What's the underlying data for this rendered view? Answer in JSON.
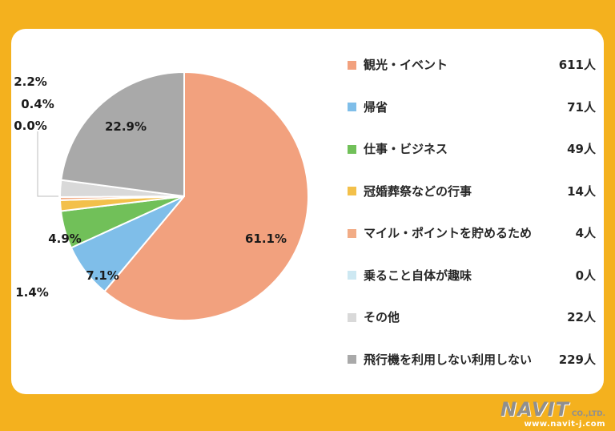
{
  "frame": {
    "background": "#F4B11E",
    "panel_background": "#FFFFFF"
  },
  "chart_data": {
    "type": "pie",
    "title": "",
    "unit": "人",
    "direction": "clockwise",
    "start_angle_deg": 0,
    "legend_position": "right",
    "categories": [
      "観光・イベント",
      "帰省",
      "仕事・ビジネス",
      "冠婚葬祭などの行事",
      "マイル・ポイントを貯めるため",
      "乗ること自体が趣味",
      "その他",
      "飛行機を利用しない利用しない"
    ],
    "values": [
      611,
      71,
      49,
      14,
      4,
      0,
      22,
      229
    ],
    "percent_labels": [
      "61.1%",
      "7.1%",
      "4.9%",
      "1.4%",
      "0.4%",
      "0.0%",
      "2.2%",
      "22.9%"
    ],
    "colors": [
      "#F2A17E",
      "#7FBEE9",
      "#71C059",
      "#F3C04A",
      "#F2AC86",
      "#CDE8F2",
      "#D9D9D9",
      "#A9A9A9"
    ],
    "legend": [
      {
        "label": "観光・イベント",
        "value_text": "611人"
      },
      {
        "label": "帰省",
        "value_text": "71人"
      },
      {
        "label": "仕事・ビジネス",
        "value_text": "49人"
      },
      {
        "label": "冠婚葬祭などの行事",
        "value_text": "14人"
      },
      {
        "label": "マイル・ポイントを貯めるため",
        "value_text": "4人"
      },
      {
        "label": "乗ること自体が趣味",
        "value_text": "0人"
      },
      {
        "label": "その他",
        "value_text": "22人"
      },
      {
        "label": "飛行機を利用しない利用しない",
        "value_text": "229人"
      }
    ]
  },
  "branding": {
    "name": "NAVIT",
    "suffix": "CO.,LTD.",
    "url": "www.navit-j.com"
  }
}
